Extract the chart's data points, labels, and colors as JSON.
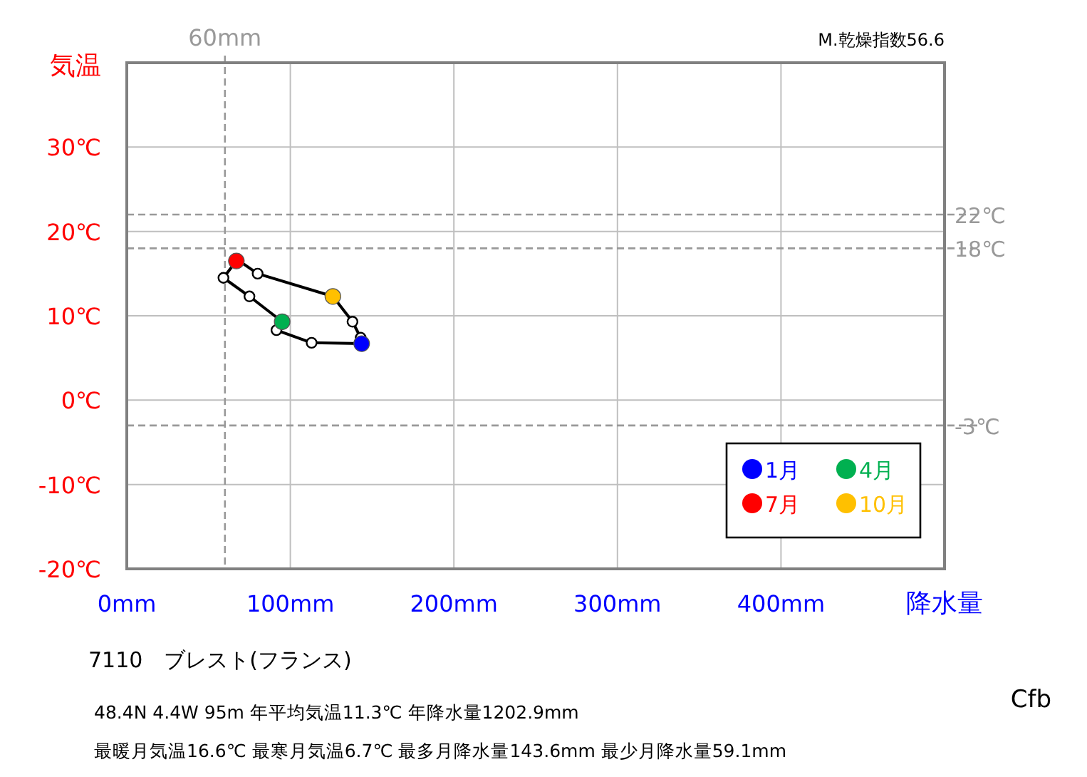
{
  "chart_data": {
    "type": "line",
    "xlabel": "降水量",
    "ylabel": "気温",
    "xlim": [
      0,
      500
    ],
    "ylim": [
      -20,
      40
    ],
    "xticks": [
      {
        "value": 0,
        "label": "0mm"
      },
      {
        "value": 100,
        "label": "100mm"
      },
      {
        "value": 200,
        "label": "200mm"
      },
      {
        "value": 300,
        "label": "300mm"
      },
      {
        "value": 400,
        "label": "400mm"
      },
      {
        "value": 500,
        "label": null
      }
    ],
    "yticks": [
      {
        "value": -20,
        "label": "-20℃"
      },
      {
        "value": -10,
        "label": "-10℃"
      },
      {
        "value": 0,
        "label": "0℃"
      },
      {
        "value": 10,
        "label": "10℃"
      },
      {
        "value": 20,
        "label": "20℃"
      },
      {
        "value": 30,
        "label": "30℃"
      },
      {
        "value": 40,
        "label": null
      }
    ],
    "grid": true,
    "legend": "bottom right",
    "marker": "circle",
    "series": [
      {
        "type": "line",
        "color": "#000000",
        "x": [
          143.6,
          113,
          91.5,
          95,
          75,
          59.1,
          67,
          68,
          80,
          126,
          138,
          143
        ],
        "values": [
          6.7,
          6.8,
          8.3,
          9.3,
          12.3,
          14.5,
          16.5,
          16.6,
          15.0,
          12.3,
          9.3,
          7.4
        ]
      },
      {
        "type": "scatter",
        "name": "1月",
        "color": "#0000ff",
        "x": [
          143.6
        ],
        "values": [
          6.7
        ]
      },
      {
        "type": "scatter",
        "name": "4月",
        "color": "#00b050",
        "x": [
          95
        ],
        "values": [
          9.3
        ]
      },
      {
        "type": "scatter",
        "name": "7月",
        "color": "#ff0000",
        "x": [
          67
        ],
        "values": [
          16.5
        ]
      },
      {
        "type": "scatter",
        "name": "10月",
        "color": "#ffc000",
        "x": [
          126
        ],
        "values": [
          12.3
        ]
      }
    ],
    "ref_lines": [
      {
        "axis": "y",
        "value": 22,
        "label": "22℃",
        "color": "#999999",
        "line_style": "dashed"
      },
      {
        "axis": "y",
        "value": 18,
        "label": "18℃",
        "color": "#999999",
        "line_style": "dashed"
      },
      {
        "axis": "y",
        "value": -3,
        "label": "-3℃",
        "color": "#999999",
        "line_style": "dashed"
      },
      {
        "axis": "x",
        "value": 60,
        "label": "60mm",
        "color": "#999999",
        "line_style": "dashed"
      }
    ],
    "annotations": [
      "M.乾燥指数56.6",
      "7110　ブレスト(フランス)",
      "48.4N  4.4W 95m  年平均気温11.3℃ 年降水量1202.9mm",
      "最暖月気温16.6℃ 最寒月気温6.7℃ 最多月降水量143.6mm 最少月降水量59.1mm",
      "Cfb"
    ]
  }
}
